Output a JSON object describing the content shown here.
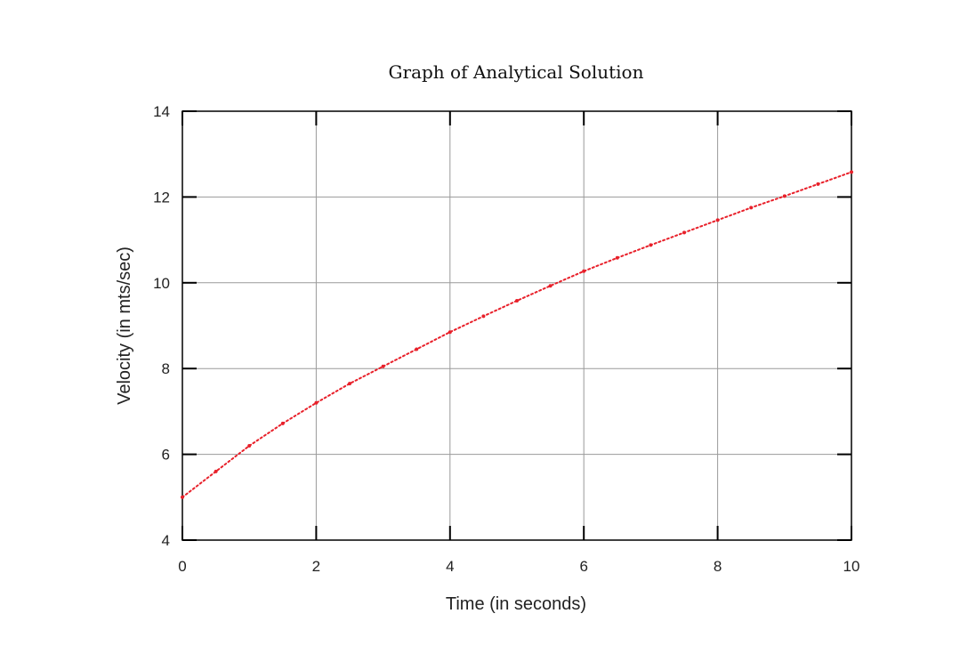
{
  "chart_data": {
    "type": "line",
    "title": "Graph of Analytical Solution",
    "xlabel": "Time (in seconds)",
    "ylabel": "Velocity (in mts/sec)",
    "xlim": [
      0,
      10
    ],
    "ylim": [
      4,
      14
    ],
    "xticks": [
      "0",
      "2",
      "4",
      "6",
      "8",
      "10"
    ],
    "yticks": [
      "4",
      "6",
      "8",
      "10",
      "12",
      "14"
    ],
    "grid": true,
    "colors": {
      "series": "#e8202a",
      "grid": "#9a9a9a",
      "axis": "#000000"
    },
    "series": [
      {
        "x": [
          0,
          0.5,
          1,
          1.5,
          2,
          2.5,
          3,
          3.5,
          4,
          4.5,
          5,
          5.5,
          6,
          6.5,
          7,
          7.5,
          8,
          8.5,
          9,
          9.5,
          10
        ],
        "values": [
          5.0,
          5.6,
          6.2,
          6.72,
          7.2,
          7.65,
          8.05,
          8.45,
          8.85,
          9.22,
          9.58,
          9.93,
          10.27,
          10.58,
          10.88,
          11.17,
          11.46,
          11.75,
          12.02,
          12.3,
          12.58
        ]
      }
    ]
  }
}
